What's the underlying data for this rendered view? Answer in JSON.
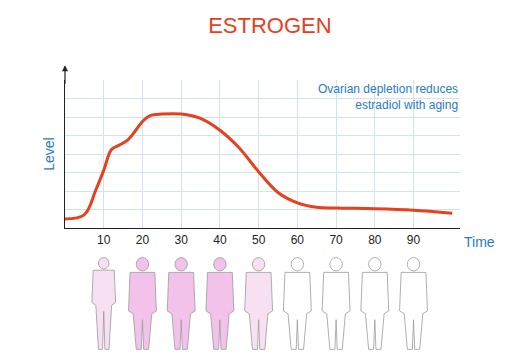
{
  "chart_data": {
    "type": "line",
    "title": "ESTROGEN",
    "annotation": "Ovarian depletion reduces\nestradiol with aging",
    "x_label": "Time",
    "y_label": "Level",
    "x": [
      0,
      5,
      8,
      10,
      12,
      14,
      16,
      18,
      20,
      22,
      25,
      30,
      35,
      40,
      45,
      50,
      55,
      60,
      65,
      70,
      80,
      90,
      100
    ],
    "values": [
      6,
      9,
      26,
      39,
      53,
      56,
      59,
      65,
      72,
      76,
      77,
      77,
      74,
      66,
      54,
      38,
      24,
      17,
      14,
      13.5,
      13,
      12,
      10
    ],
    "color": "#e8401c",
    "line_style": "solid",
    "xlim": [
      0,
      102
    ],
    "ylim": [
      0,
      100
    ],
    "xticks": [
      10,
      20,
      30,
      40,
      50,
      60,
      70,
      80,
      90
    ],
    "yticks": [
      0,
      12.5,
      25,
      37.5,
      50,
      62.5,
      75,
      87.5,
      100
    ],
    "grid": true,
    "tick_labels": "x"
  }
}
